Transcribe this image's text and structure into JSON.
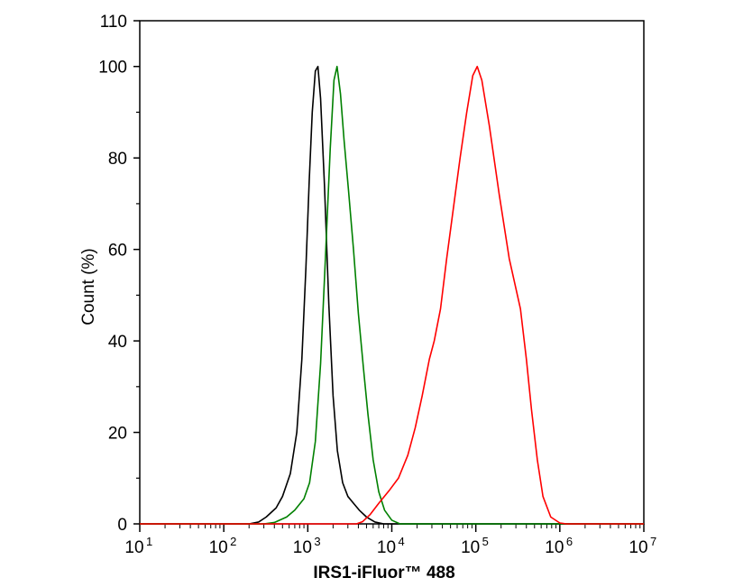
{
  "chart_data": {
    "type": "line",
    "title": "",
    "xlabel": "IRS1-iFluor™ 488",
    "ylabel": "Count  (%)",
    "x_scale": "log",
    "xlim": [
      10,
      10000000
    ],
    "ylim": [
      0,
      110
    ],
    "x_ticks": [
      {
        "base": "10",
        "exp": "1",
        "value": 10
      },
      {
        "base": "10",
        "exp": "2",
        "value": 100
      },
      {
        "base": "10",
        "exp": "3",
        "value": 1000
      },
      {
        "base": "10",
        "exp": "4",
        "value": 10000
      },
      {
        "base": "10",
        "exp": "5",
        "value": 100000
      },
      {
        "base": "10",
        "exp": "6",
        "value": 1000000
      },
      {
        "base": "10",
        "exp": "7",
        "value": 10000000
      }
    ],
    "y_ticks": [
      "0",
      "20",
      "40",
      "60",
      "80",
      "100",
      "110"
    ],
    "y_tick_values": [
      0,
      20,
      40,
      60,
      80,
      100,
      110
    ],
    "grid": false,
    "legend": false,
    "series": [
      {
        "color": "#000000",
        "points": [
          [
            10,
            0
          ],
          [
            200,
            0
          ],
          [
            260,
            0.4
          ],
          [
            320,
            1.5
          ],
          [
            420,
            3.5
          ],
          [
            500,
            6
          ],
          [
            620,
            11
          ],
          [
            740,
            20
          ],
          [
            850,
            36
          ],
          [
            950,
            56
          ],
          [
            1040,
            75
          ],
          [
            1130,
            90
          ],
          [
            1230,
            99
          ],
          [
            1320,
            100
          ],
          [
            1420,
            93
          ],
          [
            1580,
            74
          ],
          [
            1780,
            48
          ],
          [
            2000,
            28
          ],
          [
            2250,
            16
          ],
          [
            2600,
            9
          ],
          [
            3000,
            6
          ],
          [
            3500,
            4.5
          ],
          [
            4100,
            3
          ],
          [
            5000,
            1.5
          ],
          [
            6300,
            0.4
          ],
          [
            8000,
            0
          ],
          [
            10000000,
            0
          ]
        ]
      },
      {
        "color": "#008000",
        "points": [
          [
            10,
            0
          ],
          [
            300,
            0
          ],
          [
            400,
            0.3
          ],
          [
            560,
            1.5
          ],
          [
            700,
            3
          ],
          [
            900,
            5.5
          ],
          [
            1050,
            9
          ],
          [
            1230,
            18
          ],
          [
            1420,
            35
          ],
          [
            1620,
            58
          ],
          [
            1850,
            82
          ],
          [
            2050,
            97
          ],
          [
            2230,
            100
          ],
          [
            2450,
            94
          ],
          [
            2700,
            84
          ],
          [
            3050,
            73
          ],
          [
            3500,
            60
          ],
          [
            4000,
            46
          ],
          [
            4600,
            34
          ],
          [
            5200,
            24
          ],
          [
            6000,
            14
          ],
          [
            7000,
            7
          ],
          [
            8200,
            3
          ],
          [
            10000,
            0.8
          ],
          [
            12500,
            0
          ],
          [
            10000000,
            0
          ]
        ]
      },
      {
        "color": "#ff0000",
        "points": [
          [
            10,
            0
          ],
          [
            3800,
            0
          ],
          [
            4500,
            0.5
          ],
          [
            5500,
            2
          ],
          [
            7000,
            4.5
          ],
          [
            9500,
            7.5
          ],
          [
            12000,
            10
          ],
          [
            15500,
            15
          ],
          [
            19000,
            21
          ],
          [
            23000,
            28
          ],
          [
            28000,
            36
          ],
          [
            32000,
            40
          ],
          [
            38000,
            47
          ],
          [
            45000,
            58
          ],
          [
            55000,
            70
          ],
          [
            65000,
            80
          ],
          [
            78000,
            90
          ],
          [
            92000,
            98
          ],
          [
            104000,
            100
          ],
          [
            118000,
            97
          ],
          [
            145000,
            87
          ],
          [
            190000,
            72
          ],
          [
            250000,
            58
          ],
          [
            340000,
            47
          ],
          [
            400000,
            36
          ],
          [
            460000,
            25
          ],
          [
            540000,
            14
          ],
          [
            630000,
            6
          ],
          [
            780000,
            1.5
          ],
          [
            1000000,
            0.2
          ],
          [
            1200000,
            0
          ],
          [
            10000000,
            0
          ]
        ]
      }
    ]
  }
}
